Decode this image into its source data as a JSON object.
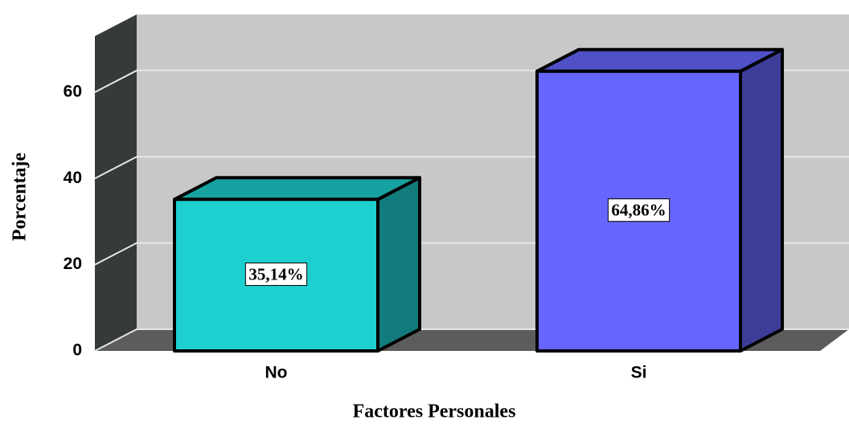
{
  "chart_data": {
    "type": "bar3d",
    "x_label": "Factores Personales",
    "y_label": "Porcentaje",
    "categories": [
      "No",
      "Si"
    ],
    "values": [
      35.14,
      64.86
    ],
    "value_labels": [
      "35,14%",
      "64,86%"
    ],
    "colors": [
      "#1ecfcf",
      "#6666ff"
    ],
    "ylim": [
      0,
      73
    ],
    "yticks": [
      0,
      20,
      40,
      60
    ],
    "grid": true
  }
}
